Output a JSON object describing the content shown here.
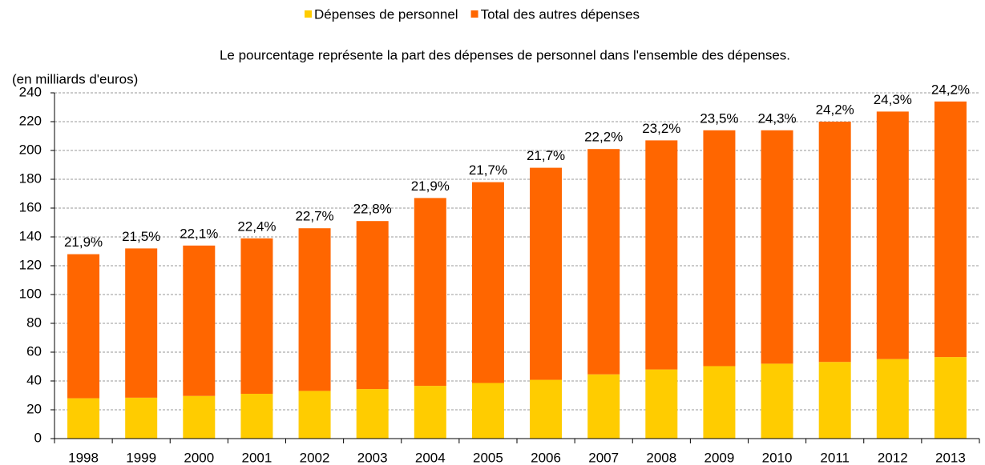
{
  "chart_data": {
    "type": "stacked_bar",
    "subtitle": "Le pourcentage représente la part des dépenses de personnel dans l'ensemble des dépenses.",
    "y_label": "(en milliards d'euros)",
    "categories": [
      "1998",
      "1999",
      "2000",
      "2001",
      "2002",
      "2003",
      "2004",
      "2005",
      "2006",
      "2007",
      "2008",
      "2009",
      "2010",
      "2011",
      "2012",
      "2013"
    ],
    "series": [
      {
        "name": "Dépenses de personnel",
        "color": "#ffcc00",
        "values": [
          28,
          28.4,
          29.6,
          31.1,
          33.1,
          34.4,
          36.6,
          38.6,
          40.8,
          44.6,
          48,
          50.3,
          52,
          53.2,
          55.2,
          56.6
        ]
      },
      {
        "name": "Total des autres dépenses",
        "color": "#ff6600",
        "values": [
          100,
          103.6,
          104.4,
          107.9,
          112.9,
          116.6,
          130.4,
          139.4,
          147.2,
          156.4,
          159,
          163.7,
          162,
          166.8,
          171.8,
          177.4
        ]
      }
    ],
    "percent_labels": [
      "21,9%",
      "21,5%",
      "22,1%",
      "22,4%",
      "22,7%",
      "22,8%",
      "21,9%",
      "21,7%",
      "21,7%",
      "22,2%",
      "23,2%",
      "23,5%",
      "24,3%",
      "24,2%",
      "24,3%",
      "24,2%"
    ],
    "ylim": [
      0,
      240
    ],
    "yticks": [
      0,
      20,
      40,
      60,
      80,
      100,
      120,
      140,
      160,
      180,
      200,
      220,
      240
    ],
    "grid": true,
    "legend": "top"
  }
}
